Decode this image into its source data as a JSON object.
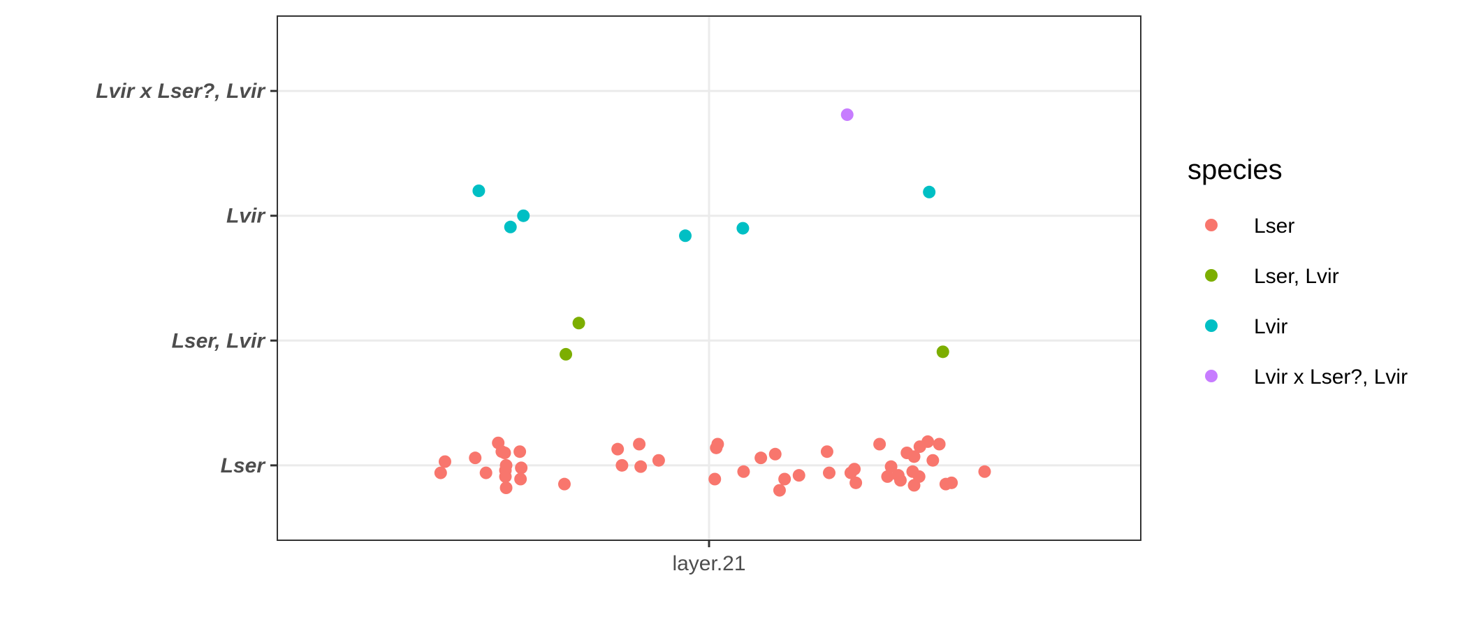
{
  "chart_data": {
    "type": "scatter",
    "title": "",
    "xlabel": "",
    "ylabel": "",
    "x_categories": [
      "layer.21"
    ],
    "y_categories": [
      "Lser",
      "Lser, Lvir",
      "Lvir",
      "Lvir x Lser?, Lvir"
    ],
    "grid": true,
    "legend": {
      "title": "species",
      "placement": "right",
      "entries": [
        {
          "label": "Lser",
          "color": "#F8766D"
        },
        {
          "label": "Lser, Lvir",
          "color": "#7CAE00"
        },
        {
          "label": "Lvir",
          "color": "#00BFC4"
        },
        {
          "label": "Lvir x Lser?, Lvir",
          "color": "#C77CFF"
        }
      ]
    },
    "series": [
      {
        "name": "Lser",
        "color": "#F8766D",
        "points": [
          [
            -0.373,
            -0.06
          ],
          [
            -0.367,
            0.03
          ],
          [
            -0.325,
            0.06
          ],
          [
            -0.31,
            -0.06
          ],
          [
            -0.293,
            0.18
          ],
          [
            -0.288,
            0.11
          ],
          [
            -0.284,
            0.1
          ],
          [
            -0.283,
            -0.04
          ],
          [
            -0.283,
            -0.09
          ],
          [
            -0.282,
            -0.18
          ],
          [
            -0.282,
            0.0
          ],
          [
            -0.263,
            0.11
          ],
          [
            -0.262,
            -0.11
          ],
          [
            -0.261,
            -0.02
          ],
          [
            -0.201,
            -0.15
          ],
          [
            -0.127,
            0.13
          ],
          [
            -0.121,
            0.0
          ],
          [
            -0.097,
            0.17
          ],
          [
            -0.095,
            -0.01
          ],
          [
            -0.07,
            0.04
          ],
          [
            0.008,
            -0.11
          ],
          [
            0.01,
            0.14
          ],
          [
            0.012,
            0.17
          ],
          [
            0.048,
            -0.05
          ],
          [
            0.072,
            0.06
          ],
          [
            0.092,
            0.09
          ],
          [
            0.098,
            -0.2
          ],
          [
            0.105,
            -0.11
          ],
          [
            0.125,
            -0.08
          ],
          [
            0.164,
            0.11
          ],
          [
            0.167,
            -0.06
          ],
          [
            0.197,
            -0.06
          ],
          [
            0.202,
            -0.03
          ],
          [
            0.204,
            -0.14
          ],
          [
            0.237,
            0.17
          ],
          [
            0.248,
            -0.09
          ],
          [
            0.253,
            -0.01
          ],
          [
            0.263,
            -0.08
          ],
          [
            0.266,
            -0.12
          ],
          [
            0.275,
            0.1
          ],
          [
            0.283,
            -0.05
          ],
          [
            0.285,
            0.07
          ],
          [
            0.285,
            -0.16
          ],
          [
            0.292,
            -0.09
          ],
          [
            0.293,
            0.15
          ],
          [
            0.304,
            0.19
          ],
          [
            0.311,
            0.04
          ],
          [
            0.32,
            0.17
          ],
          [
            0.329,
            -0.15
          ],
          [
            0.337,
            -0.14
          ],
          [
            0.383,
            -0.05
          ]
        ]
      },
      {
        "name": "Lser, Lvir",
        "color": "#7CAE00",
        "points": [
          [
            -0.199,
            -0.11
          ],
          [
            -0.181,
            0.14
          ],
          [
            0.325,
            -0.09
          ]
        ]
      },
      {
        "name": "Lvir",
        "color": "#00BFC4",
        "points": [
          [
            -0.32,
            0.2
          ],
          [
            -0.276,
            -0.09
          ],
          [
            -0.258,
            0.0
          ],
          [
            -0.033,
            -0.16
          ],
          [
            0.047,
            -0.1
          ],
          [
            0.306,
            0.19
          ]
        ]
      },
      {
        "name": "Lvir x Lser?, Lvir",
        "color": "#C77CFF",
        "points": [
          [
            0.192,
            -0.19
          ]
        ]
      }
    ]
  }
}
